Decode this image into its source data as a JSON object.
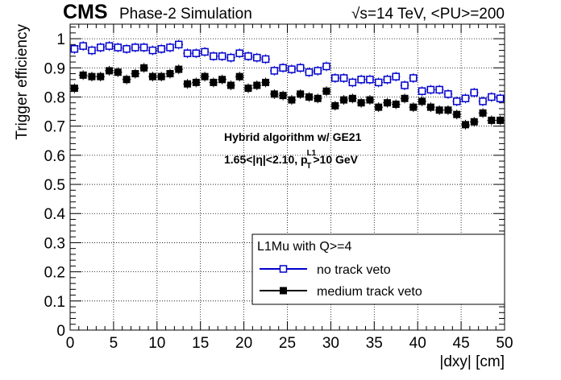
{
  "header": {
    "experiment": "CMS",
    "subtitle": "Phase-2 Simulation",
    "energy_label": "√s=14 TeV, <PU>=200"
  },
  "annotation": {
    "line1": "Hybrid algorithm w/ GE21",
    "line2_prefix": "1.65<|η|<2.10, p",
    "line2_sub": "T",
    "line2_sup": "L1",
    "line2_suffix": ">10 GeV"
  },
  "legend": {
    "title": "L1Mu with Q>=4",
    "placement": "bottom-right"
  },
  "colors": {
    "no_track_veto": "#0000cc",
    "medium_track_veto": "#000000"
  },
  "chart_data": {
    "type": "scatter",
    "xlabel": "|dxy| [cm]",
    "ylabel": "Trigger efficiency",
    "xlim": [
      0,
      50
    ],
    "ylim": [
      0,
      1.05
    ],
    "grid": true,
    "x_ticks": [
      "0",
      "5",
      "10",
      "15",
      "20",
      "25",
      "30",
      "35",
      "40",
      "45",
      "50"
    ],
    "y_ticks": [
      "0",
      "0.1",
      "0.2",
      "0.3",
      "0.4",
      "0.5",
      "0.6",
      "0.7",
      "0.8",
      "0.9",
      "1"
    ],
    "x": [
      0.5,
      1.5,
      2.5,
      3.5,
      4.5,
      5.5,
      6.5,
      7.5,
      8.5,
      9.5,
      10.5,
      11.5,
      12.5,
      13.5,
      14.5,
      15.5,
      16.5,
      17.5,
      18.5,
      19.5,
      20.5,
      21.5,
      22.5,
      23.5,
      24.5,
      25.5,
      26.5,
      27.5,
      28.5,
      29.5,
      30.5,
      31.5,
      32.5,
      33.5,
      34.5,
      35.5,
      36.5,
      37.5,
      38.5,
      39.5,
      40.5,
      41.5,
      42.5,
      43.5,
      44.5,
      45.5,
      46.5,
      47.5,
      48.5,
      49.5
    ],
    "series": [
      {
        "name": "no track veto",
        "marker": "open-square",
        "values": [
          0.965,
          0.975,
          0.96,
          0.97,
          0.975,
          0.97,
          0.965,
          0.97,
          0.97,
          0.96,
          0.965,
          0.97,
          0.98,
          0.95,
          0.95,
          0.955,
          0.94,
          0.94,
          0.935,
          0.95,
          0.94,
          0.935,
          0.93,
          0.89,
          0.9,
          0.895,
          0.9,
          0.885,
          0.89,
          0.905,
          0.865,
          0.865,
          0.85,
          0.86,
          0.86,
          0.85,
          0.86,
          0.87,
          0.84,
          0.865,
          0.82,
          0.825,
          0.825,
          0.81,
          0.785,
          0.795,
          0.815,
          0.785,
          0.8,
          0.795
        ]
      },
      {
        "name": "medium track veto",
        "marker": "filled-square",
        "values": [
          0.83,
          0.875,
          0.87,
          0.87,
          0.89,
          0.885,
          0.86,
          0.88,
          0.9,
          0.87,
          0.87,
          0.88,
          0.895,
          0.845,
          0.85,
          0.87,
          0.85,
          0.86,
          0.84,
          0.87,
          0.83,
          0.84,
          0.85,
          0.81,
          0.805,
          0.79,
          0.81,
          0.8,
          0.795,
          0.82,
          0.77,
          0.79,
          0.795,
          0.78,
          0.79,
          0.765,
          0.78,
          0.775,
          0.795,
          0.765,
          0.785,
          0.765,
          0.755,
          0.755,
          0.74,
          0.705,
          0.715,
          0.745,
          0.72,
          0.72
        ]
      }
    ]
  }
}
